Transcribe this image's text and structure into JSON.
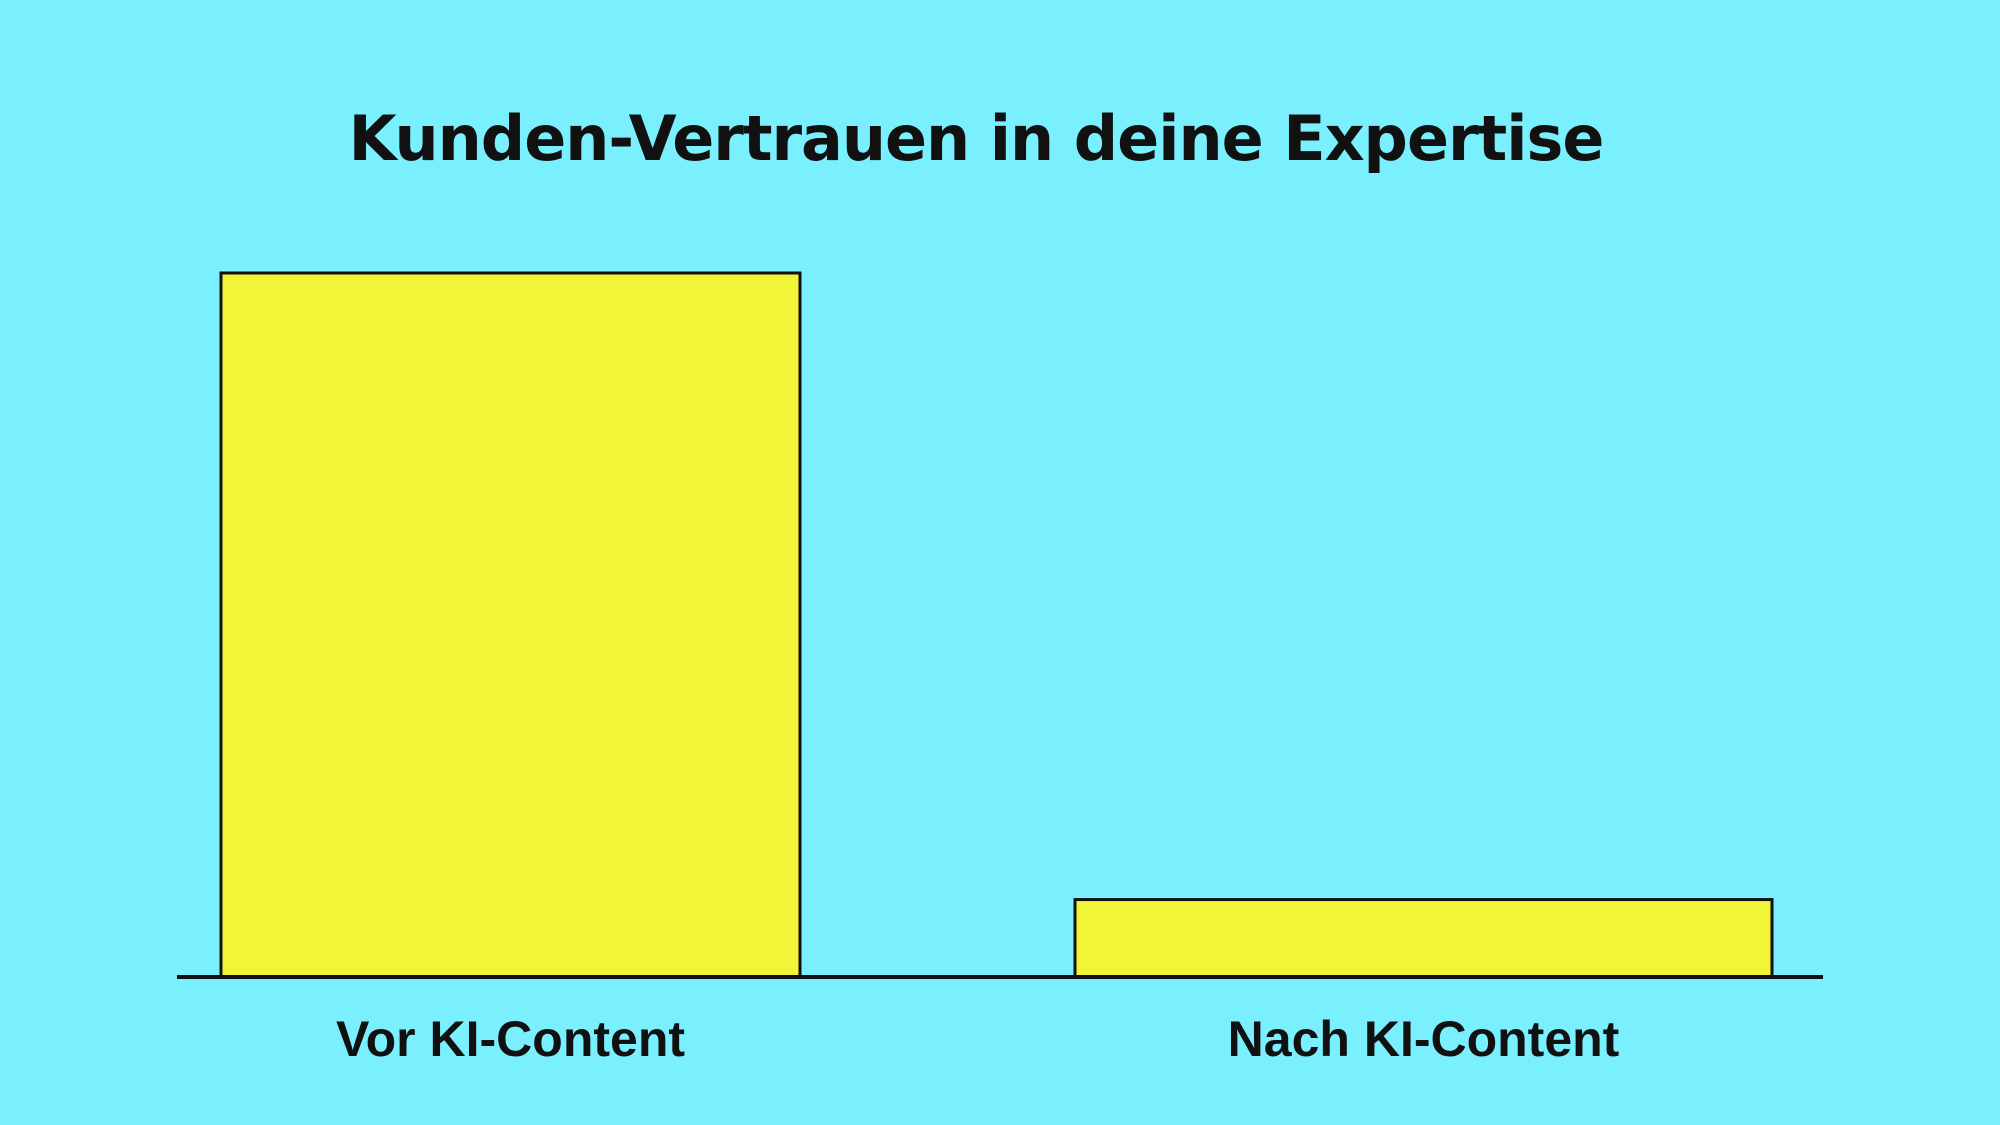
{
  "chart_data": {
    "type": "bar",
    "title": "Kunden-Vertrauen in deine Expertise",
    "categories": [
      "Vor KI-Content",
      "Nach KI-Content"
    ],
    "values": [
      100,
      11
    ],
    "color": "#f2f537"
  }
}
